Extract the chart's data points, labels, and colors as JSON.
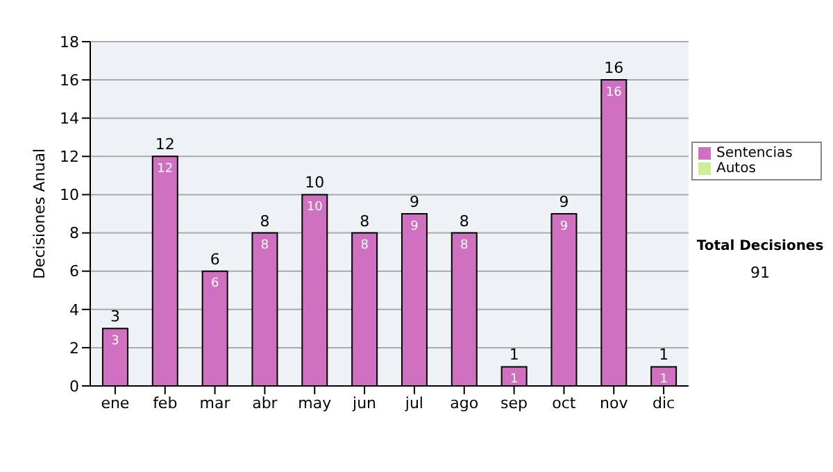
{
  "chart_data": {
    "type": "bar",
    "ylabel": "Decisiones Anual",
    "categories": [
      "ene",
      "feb",
      "mar",
      "abr",
      "may",
      "jun",
      "jul",
      "ago",
      "sep",
      "oct",
      "nov",
      "dic"
    ],
    "series": [
      {
        "name": "Sentencias",
        "color": "#d070c0",
        "values": [
          3,
          12,
          6,
          8,
          10,
          8,
          9,
          8,
          1,
          9,
          16,
          1
        ]
      },
      {
        "name": "Autos",
        "color": "#ccee99",
        "values": [
          null,
          null,
          null,
          null,
          null,
          null,
          null,
          null,
          null,
          null,
          null,
          null
        ]
      }
    ],
    "stacked": true,
    "data_labels": true,
    "totals": [
      "3",
      "12",
      "6",
      "8",
      "10",
      "8",
      "9",
      "8",
      "1",
      "9",
      "16",
      "1"
    ],
    "ylim": [
      0,
      18
    ],
    "yticks": [
      0,
      2,
      4,
      6,
      8,
      10,
      12,
      14,
      16,
      18
    ],
    "grid": "y",
    "legend": "right",
    "annotations": [
      "Total Decisiones",
      "91"
    ]
  }
}
